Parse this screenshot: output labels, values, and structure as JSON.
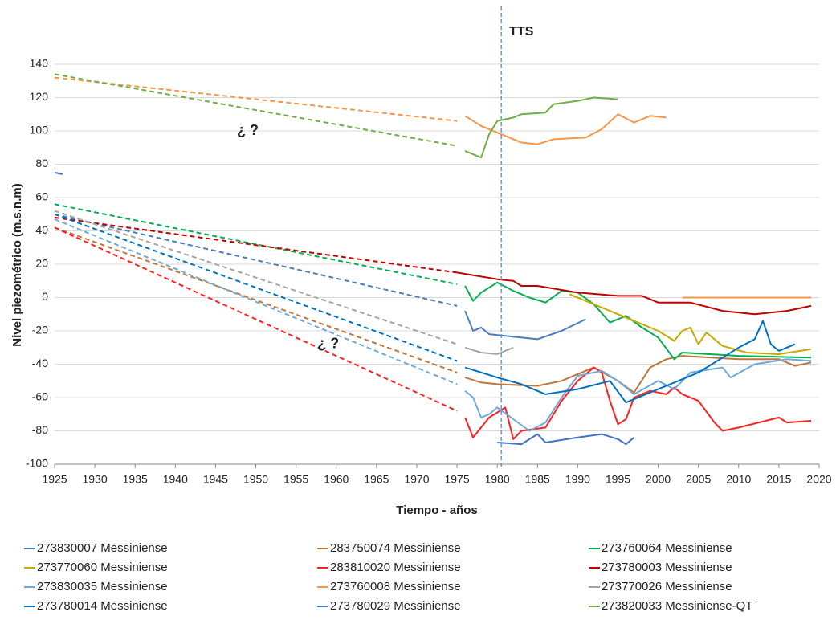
{
  "chart_data": {
    "type": "line",
    "x_label": "Tiempo - años",
    "y_label": "Nivel piezométrico (m.s.n.m)",
    "xlim": [
      1925,
      2020
    ],
    "xticks": [
      1925,
      1930,
      1935,
      1940,
      1945,
      1950,
      1955,
      1960,
      1965,
      1970,
      1975,
      1980,
      1985,
      1990,
      1995,
      2000,
      2005,
      2010,
      2015,
      2020
    ],
    "ylim": [
      -100,
      140
    ],
    "yticks": [
      -100,
      -80,
      -60,
      -40,
      -20,
      0,
      20,
      40,
      60,
      80,
      100,
      120,
      140
    ],
    "grid": true,
    "annotations": [
      {
        "text": "TTS",
        "x": 1980.5
      },
      {
        "text": "¿  ?",
        "x": 1949,
        "y": 100
      },
      {
        "text": "¿  ?",
        "x": 1959,
        "y": -28
      }
    ],
    "series": [
      {
        "name": "273830007 Messiniense",
        "color": "#4a7ebb",
        "x": [
          1976,
          1977,
          1978,
          1979,
          1981,
          1985,
          1988,
          1991
        ],
        "values": [
          -8,
          -20,
          -18,
          -22,
          -23,
          -25,
          -20,
          -13
        ],
        "projection": {
          "x": [
            1925,
            1975
          ],
          "values": [
            50,
            -5
          ]
        }
      },
      {
        "name": "283750074 Messiniense",
        "color": "#c0763a",
        "x": [
          1976,
          1978,
          1980,
          1985,
          1988,
          1992,
          1995,
          1997,
          1999,
          2001,
          2003,
          2010,
          2015,
          2017,
          2019
        ],
        "values": [
          -48,
          -51,
          -52,
          -53,
          -50,
          -42,
          -50,
          -57,
          -42,
          -37,
          -35,
          -37,
          -37,
          -41,
          -39
        ],
        "projection": {
          "x": [
            1925,
            1975
          ],
          "values": [
            42,
            -45
          ]
        }
      },
      {
        "name": "273760064 Messiniense",
        "color": "#00b050",
        "x": [
          1976,
          1977,
          1978,
          1980,
          1982,
          1984,
          1986,
          1988,
          1990,
          1992,
          1994,
          1996,
          1998,
          2000,
          2002,
          2003,
          2010,
          2019
        ],
        "values": [
          7,
          -2,
          3,
          9,
          4,
          0,
          -3,
          4,
          3,
          -4,
          -15,
          -11,
          -18,
          -24,
          -37,
          -33,
          -35,
          -36
        ],
        "projection": {
          "x": [
            1925,
            1975
          ],
          "values": [
            56,
            8
          ]
        }
      },
      {
        "name": "273770060 Messiniense",
        "color": "#c9a800",
        "x": [
          1989,
          1992,
          1995,
          2000,
          2002,
          2003,
          2004,
          2005,
          2006,
          2008,
          2011,
          2015,
          2019
        ],
        "values": [
          2,
          -4,
          -10,
          -20,
          -26,
          -20,
          -18,
          -28,
          -21,
          -29,
          -33,
          -34,
          -31
        ]
      },
      {
        "name": "283810020 Messiniense",
        "color": "#ff2020",
        "x": [
          1976,
          1977,
          1979,
          1981,
          1982,
          1983,
          1986,
          1988,
          1990,
          1992,
          1993,
          1994,
          1995,
          1996,
          1997,
          1999,
          2001,
          2002,
          2003,
          2005,
          2007,
          2008,
          2010,
          2015,
          2016,
          2019
        ],
        "values": [
          -72,
          -84,
          -72,
          -66,
          -85,
          -80,
          -78,
          -62,
          -50,
          -42,
          -45,
          -62,
          -76,
          -73,
          -60,
          -56,
          -58,
          -54,
          -58,
          -62,
          -75,
          -80,
          -78,
          -72,
          -75,
          -74
        ],
        "projection": {
          "x": [
            1925,
            1975
          ],
          "values": [
            42,
            -68
          ]
        }
      },
      {
        "name": "273780003 Messiniense",
        "color": "#c00000",
        "x": [
          1975,
          1980,
          1982,
          1983,
          1985,
          1990,
          1995,
          1998,
          2000,
          2004,
          2008,
          2012,
          2016,
          2019
        ],
        "values": [
          15,
          11,
          10,
          7,
          7,
          3,
          1,
          1,
          -3,
          -3,
          -8,
          -10,
          -8,
          -5
        ],
        "projection": {
          "x": [
            1925,
            1975
          ],
          "values": [
            48,
            15
          ]
        }
      },
      {
        "name": "273830035 Messiniense",
        "color": "#6fa8dc",
        "x": [
          1976,
          1977,
          1978,
          1979,
          1980,
          1982,
          1984,
          1986,
          1988,
          1990,
          1993,
          1995,
          1997,
          2000,
          2002,
          2004,
          2008,
          2009,
          2012,
          2016,
          2019
        ],
        "values": [
          -56,
          -60,
          -72,
          -70,
          -66,
          -73,
          -80,
          -75,
          -60,
          -47,
          -44,
          -50,
          -58,
          -50,
          -55,
          -45,
          -42,
          -48,
          -40,
          -37,
          -38
        ],
        "projection": {
          "x": [
            1925,
            1975
          ],
          "values": [
            47,
            -52
          ]
        }
      },
      {
        "name": "273760008 Messiniense",
        "color": "#f79646",
        "x": [
          1976,
          1978,
          1981,
          1983,
          1985,
          1987,
          1991,
          1993,
          1995,
          1997,
          1999,
          2001,
          2002,
          2003,
          2019
        ],
        "values": [
          109,
          103,
          97,
          93,
          92,
          95,
          96,
          101,
          110,
          105,
          109,
          108,
          null,
          0,
          0
        ],
        "projection": {
          "x": [
            1925,
            1975
          ],
          "values": [
            132,
            106
          ]
        }
      },
      {
        "name": "273770026 Messiniense",
        "color": "#a5a5a5",
        "x": [
          1976,
          1978,
          1980,
          1982
        ],
        "values": [
          -30,
          -33,
          -34,
          -30
        ],
        "projection": {
          "x": [
            1925,
            1975
          ],
          "values": [
            52,
            -28
          ]
        }
      },
      {
        "name": "273780014 Messiniense",
        "color": "#0070c0",
        "x": [
          1976,
          1980,
          1983,
          1986,
          1990,
          1994,
          1996,
          2000,
          2005,
          2010,
          2012,
          2013,
          2014,
          2015,
          2017
        ],
        "values": [
          -42,
          -48,
          -52,
          -58,
          -55,
          -50,
          -63,
          -55,
          -45,
          -30,
          -25,
          -14,
          -28,
          -32,
          -28
        ],
        "projection": {
          "x": [
            1925,
            1975
          ],
          "values": [
            50,
            -38
          ]
        }
      },
      {
        "name": "273780029 Messiniense",
        "color": "#4472c4",
        "x": [
          1925,
          1926,
          1927,
          1980,
          1983,
          1985,
          1986,
          1990,
          1993,
          1995,
          1996,
          1997
        ],
        "values": [
          75,
          74,
          null,
          -87,
          -88,
          -82,
          -87,
          -84,
          -82,
          -85,
          -88,
          -84
        ]
      },
      {
        "name": "273820033 Messiniense-QT",
        "color": "#70ad47",
        "x": [
          1976,
          1977,
          1978,
          1979,
          1980,
          1982,
          1983,
          1986,
          1987,
          1990,
          1992,
          1995
        ],
        "values": [
          88,
          86,
          84,
          98,
          106,
          108,
          110,
          111,
          116,
          118,
          120,
          119
        ],
        "projection": {
          "x": [
            1925,
            1975
          ],
          "values": [
            134,
            91
          ]
        }
      }
    ]
  }
}
